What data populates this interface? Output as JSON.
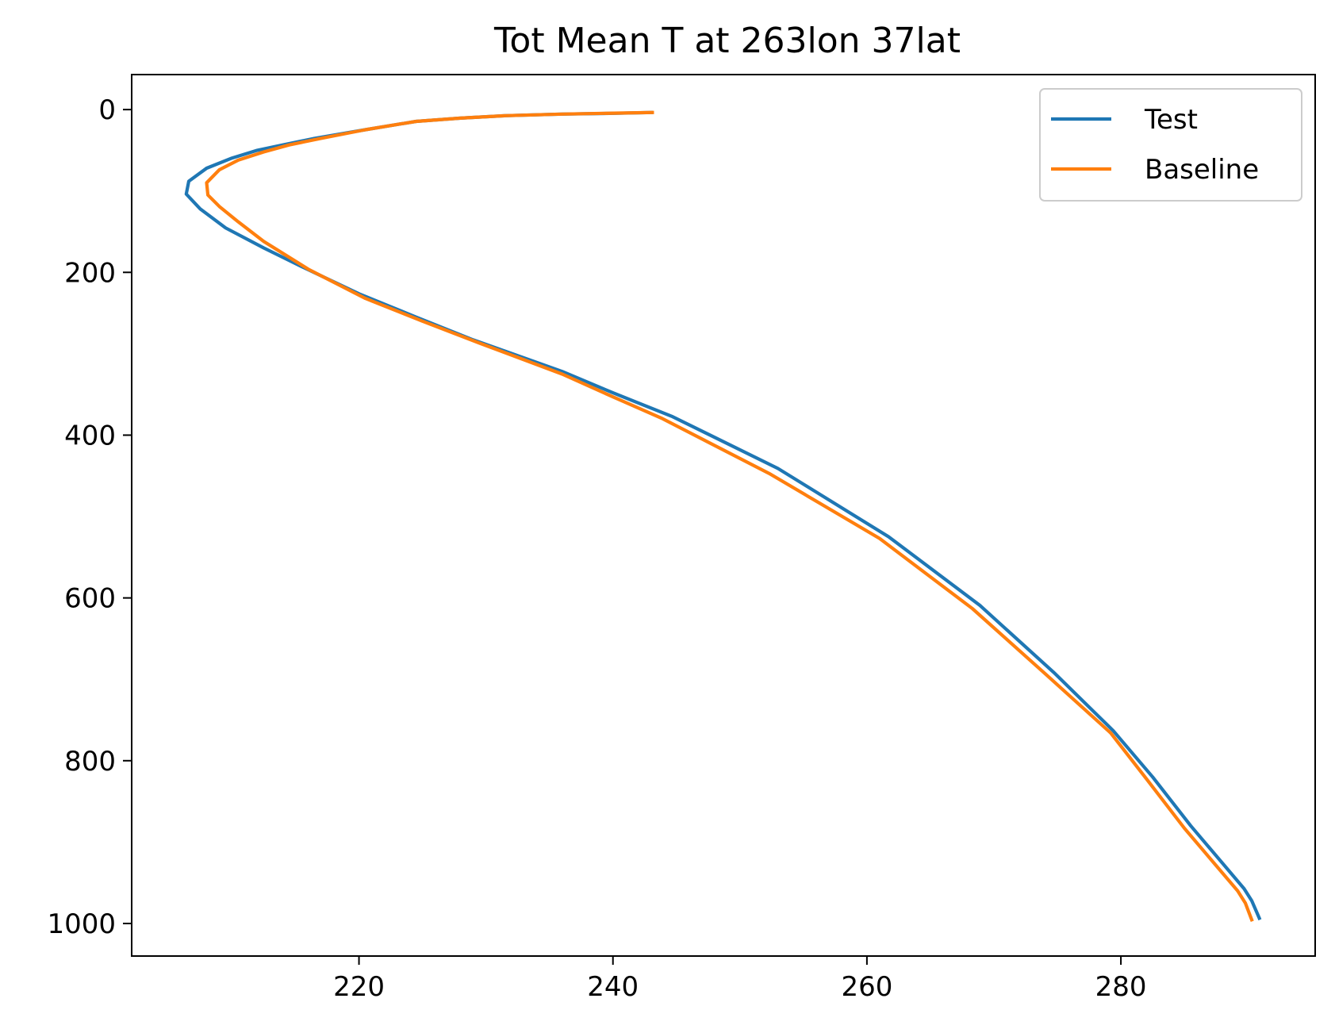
{
  "chart_data": {
    "type": "line",
    "title": "Tot Mean T at 263lon 37lat",
    "xlabel": "",
    "ylabel": "",
    "xlim": [
      202.1,
      295.3
    ],
    "ylim": [
      1040,
      -43
    ],
    "y_inverted": true,
    "grid": false,
    "legend_position": "top-right",
    "xticks": [
      220,
      240,
      260,
      280
    ],
    "yticks": [
      0,
      200,
      400,
      600,
      800,
      1000
    ],
    "series": [
      {
        "name": "Test",
        "color": "#1f77b4",
        "points": [
          [
            243.0,
            3.6
          ],
          [
            240.5,
            4.5
          ],
          [
            236.0,
            5.5
          ],
          [
            231.5,
            7.5
          ],
          [
            228.0,
            10.5
          ],
          [
            224.5,
            14.5
          ],
          [
            220.5,
            24.7
          ],
          [
            216.5,
            35.4
          ],
          [
            214.0,
            43.5
          ],
          [
            212.0,
            50.0
          ],
          [
            210.0,
            59.5
          ],
          [
            208.0,
            72.0
          ],
          [
            206.6,
            88.0
          ],
          [
            206.4,
            103.8
          ],
          [
            207.5,
            122.0
          ],
          [
            209.5,
            145.4
          ],
          [
            212.5,
            170.0
          ],
          [
            215.5,
            193.0
          ],
          [
            220.0,
            226.3
          ],
          [
            224.5,
            255.0
          ],
          [
            229.0,
            283.0
          ],
          [
            236.0,
            321.8
          ],
          [
            240.0,
            348.0
          ],
          [
            244.7,
            377.3
          ],
          [
            253.0,
            441.0
          ],
          [
            261.7,
            524.7
          ],
          [
            268.9,
            609.2
          ],
          [
            274.7,
            691.3
          ],
          [
            279.4,
            763.3
          ],
          [
            282.5,
            820.0
          ],
          [
            285.5,
            879.9
          ],
          [
            289.7,
            957.2
          ],
          [
            290.3,
            972.0
          ],
          [
            290.9,
            993.5
          ]
        ]
      },
      {
        "name": "Baseline",
        "color": "#ff7f0e",
        "points": [
          [
            243.1,
            3.6
          ],
          [
            240.5,
            4.3
          ],
          [
            236.0,
            5.5
          ],
          [
            231.5,
            7.5
          ],
          [
            228.0,
            10.5
          ],
          [
            224.5,
            14.5
          ],
          [
            220.5,
            24.7
          ],
          [
            217.0,
            35.4
          ],
          [
            214.5,
            43.5
          ],
          [
            212.5,
            52.0
          ],
          [
            210.5,
            62.0
          ],
          [
            209.0,
            74.0
          ],
          [
            208.0,
            90.0
          ],
          [
            208.1,
            105.0
          ],
          [
            209.0,
            119.0
          ],
          [
            210.5,
            138.0
          ],
          [
            212.5,
            162.0
          ],
          [
            216.0,
            196.0
          ],
          [
            220.5,
            232.0
          ],
          [
            225.0,
            260.0
          ],
          [
            229.5,
            287.0
          ],
          [
            236.0,
            325.0
          ],
          [
            240.0,
            353.0
          ],
          [
            243.8,
            379.0
          ],
          [
            252.3,
            447.0
          ],
          [
            261.0,
            527.0
          ],
          [
            268.3,
            613.0
          ],
          [
            274.1,
            694.0
          ],
          [
            279.2,
            766.0
          ],
          [
            282.0,
            822.0
          ],
          [
            285.0,
            883.0
          ],
          [
            289.2,
            960.0
          ],
          [
            289.8,
            975.0
          ],
          [
            290.3,
            995.5
          ]
        ]
      }
    ]
  }
}
